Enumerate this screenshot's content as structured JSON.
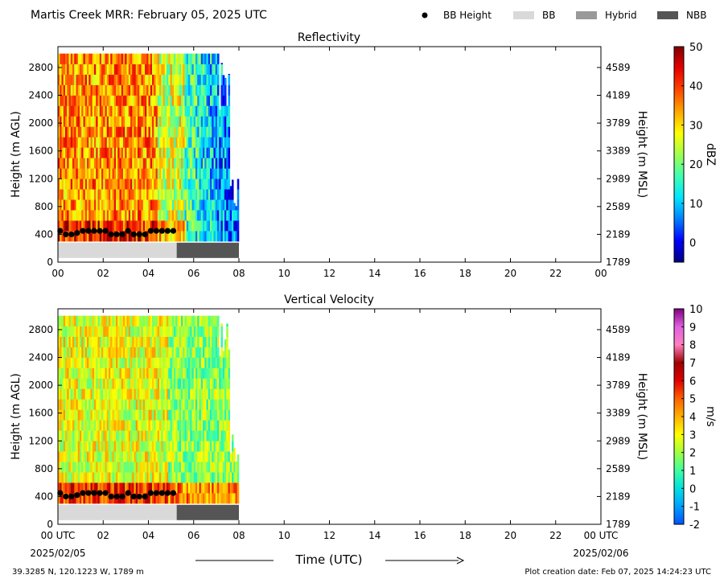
{
  "header": {
    "title": "Martis Creek MRR:  February 05, 2025 UTC"
  },
  "legend": {
    "items": [
      {
        "label": "BB Height",
        "kind": "dot",
        "color": "#000000"
      },
      {
        "label": "BB",
        "kind": "box",
        "color": "#d9d9d9"
      },
      {
        "label": "Hybrid",
        "kind": "box",
        "color": "#999999"
      },
      {
        "label": "NBB",
        "kind": "box",
        "color": "#555555"
      }
    ]
  },
  "footer": {
    "location": "39.3285 N, 120.1223 W, 1789 m",
    "creation": "Plot creation date: Feb 07, 2025 14:24:23 UTC",
    "xlabel": "Time (UTC)",
    "start_date": "2025/02/05",
    "end_date": "2025/02/06"
  },
  "chart_data": [
    {
      "type": "heatmap",
      "title": "Reflectivity",
      "ylabel": "Height (m AGL)",
      "ylabel_right": "Height (m MSL)",
      "colorbar_label": "dBZ",
      "x_ticks": [
        "00",
        "02",
        "04",
        "06",
        "08",
        "10",
        "12",
        "14",
        "16",
        "18",
        "20",
        "22",
        "00"
      ],
      "xlim": [
        0,
        24
      ],
      "y_ticks": [
        0,
        400,
        800,
        1200,
        1600,
        2000,
        2400,
        2800
      ],
      "y_ticks_right": [
        "1789",
        "2189",
        "2589",
        "2989",
        "3389",
        "3789",
        "4189",
        "4589"
      ],
      "ylim": [
        0,
        3100
      ],
      "data_x_extent": [
        0,
        8.0
      ],
      "data_y_extent": [
        300,
        3000
      ],
      "colorbar_range": [
        -5,
        50
      ],
      "colorbar_ticks": [
        0,
        10,
        20,
        30,
        40,
        50
      ],
      "colorscale": [
        "#000080",
        "#0000ff",
        "#0080ff",
        "#00e5ff",
        "#40ffb0",
        "#a0ff50",
        "#ffff00",
        "#ffa500",
        "#ff4500",
        "#e60000",
        "#800000"
      ],
      "bb_height": {
        "x": [
          0.1,
          0.35,
          0.6,
          0.85,
          1.1,
          1.35,
          1.6,
          1.85,
          2.1,
          2.35,
          2.6,
          2.85,
          3.1,
          3.35,
          3.6,
          3.85,
          4.1,
          4.35,
          4.6,
          4.85,
          5.1
        ],
        "y": [
          450,
          400,
          400,
          420,
          450,
          450,
          450,
          450,
          450,
          400,
          400,
          400,
          450,
          400,
          400,
          400,
          450,
          450,
          450,
          450,
          450
        ]
      },
      "bb_type": [
        {
          "start": 0,
          "end": 5.25,
          "type": "BB"
        },
        {
          "start": 5.25,
          "end": 8.0,
          "type": "NBB"
        }
      ]
    },
    {
      "type": "heatmap",
      "title": "Vertical Velocity",
      "ylabel": "Height (m AGL)",
      "ylabel_right": "Height (m MSL)",
      "colorbar_label": "m/s",
      "x_ticks": [
        "00 UTC",
        "02",
        "04",
        "06",
        "08",
        "10",
        "12",
        "14",
        "16",
        "18",
        "20",
        "22",
        "00 UTC"
      ],
      "xlim": [
        0,
        24
      ],
      "y_ticks": [
        0,
        400,
        800,
        1200,
        1600,
        2000,
        2400,
        2800
      ],
      "y_ticks_right": [
        "1789",
        "2189",
        "2589",
        "2989",
        "3389",
        "3789",
        "4189",
        "4589"
      ],
      "ylim": [
        0,
        3100
      ],
      "data_x_extent": [
        0,
        8.0
      ],
      "data_y_extent": [
        300,
        3000
      ],
      "colorbar_range": [
        -2,
        10
      ],
      "colorbar_ticks": [
        -2,
        -1,
        0,
        1,
        2,
        3,
        4,
        5,
        6,
        7,
        8,
        9,
        10
      ],
      "colorscale": [
        "#0050ff",
        "#00a0ff",
        "#00e0e0",
        "#40ffa0",
        "#a0ff40",
        "#ffff00",
        "#ffb000",
        "#ff6000",
        "#e00000",
        "#a00000",
        "#ff80c0",
        "#e060e0",
        "#800080"
      ],
      "bb_height": {
        "x": [
          0.1,
          0.35,
          0.6,
          0.85,
          1.1,
          1.35,
          1.6,
          1.85,
          2.1,
          2.35,
          2.6,
          2.85,
          3.1,
          3.35,
          3.6,
          3.85,
          4.1,
          4.35,
          4.6,
          4.85,
          5.1
        ],
        "y": [
          450,
          400,
          400,
          420,
          450,
          450,
          450,
          450,
          450,
          400,
          400,
          400,
          450,
          400,
          400,
          400,
          450,
          450,
          450,
          450,
          450
        ]
      },
      "bb_type": [
        {
          "start": 0,
          "end": 5.25,
          "type": "BB"
        },
        {
          "start": 5.25,
          "end": 8.0,
          "type": "NBB"
        }
      ]
    }
  ]
}
